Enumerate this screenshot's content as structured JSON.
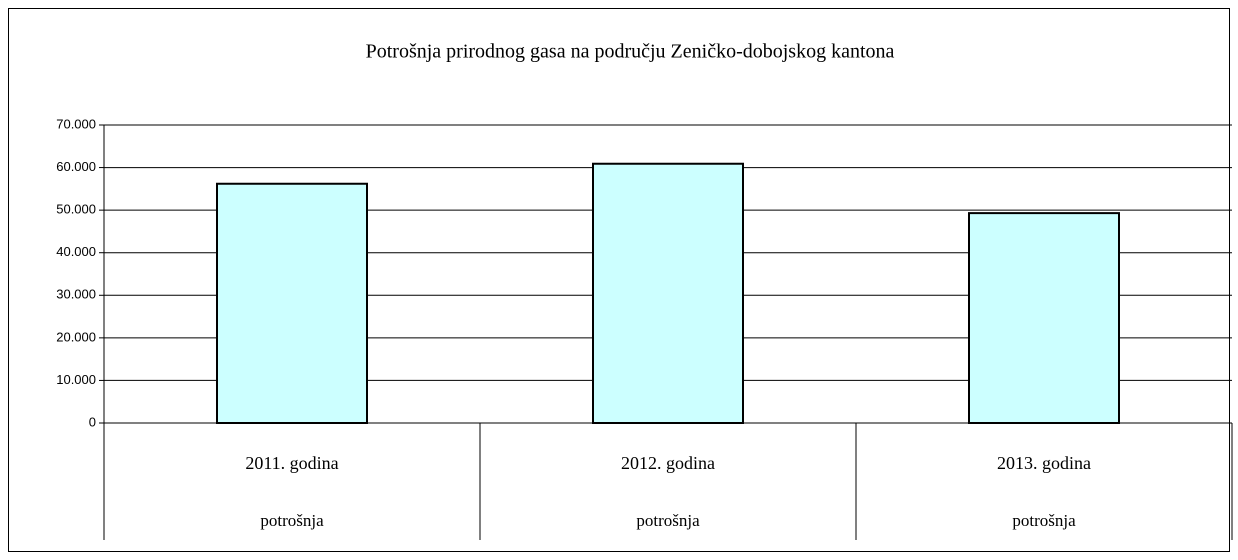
{
  "chart_data": {
    "type": "bar",
    "title": "Potrošnja prirodnog gasa na području Zeničko-dobojskog kantona",
    "categories": [
      "2011. godina",
      "2012. godina",
      "2013. godina"
    ],
    "subcategories": [
      "potrošnja",
      "potrošnja",
      "potrošnja"
    ],
    "values": [
      56200,
      60900,
      49300
    ],
    "color": "#ccffff",
    "ylim": [
      0,
      70000
    ],
    "yticks": [
      0,
      {
        "value": 10000,
        "label": "10.000"
      },
      {
        "value": 20000,
        "label": "20.000"
      },
      {
        "value": 30000,
        "label": "30.000"
      },
      {
        "value": 40000,
        "label": "40.000"
      },
      {
        "value": 50000,
        "label": "50.000"
      },
      {
        "value": 60000,
        "label": "60.000"
      },
      {
        "value": 70000,
        "label": "70.000"
      }
    ],
    "grid": true
  }
}
